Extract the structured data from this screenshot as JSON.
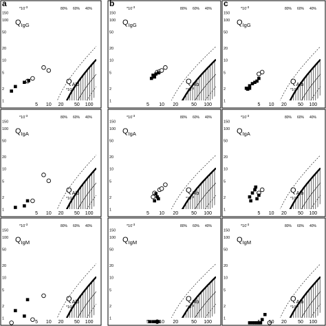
{
  "chart_data": {
    "type": "scatter",
    "scale": "log-log",
    "letters": [
      "a",
      "b",
      "c"
    ],
    "multiplier": "*10",
    "multiplier_exp": "-3",
    "x_axis": {
      "label": "Q",
      "label_sub": "Alb",
      "range": [
        1,
        150
      ],
      "ticks": [
        "5",
        "10",
        "20",
        "50",
        "100"
      ]
    },
    "y_axis": {
      "range": [
        1,
        150
      ],
      "ticks": [
        "150",
        "100",
        "50",
        "20",
        "10",
        "5",
        "2",
        "1"
      ]
    },
    "percent_labels": [
      "80%",
      "60%",
      "40%"
    ],
    "rows": [
      {
        "label": "Q",
        "label_sub": "IgG"
      },
      {
        "label": "Q",
        "label_sub": "IgA"
      },
      {
        "label": "Q",
        "label_sub": "IgM"
      }
    ],
    "panels": [
      {
        "row": 0,
        "col": 0,
        "open": [
          [
            7.5,
            6.5
          ],
          [
            10,
            5.5
          ],
          [
            3,
            3
          ],
          [
            4,
            3.5
          ]
        ],
        "filled": [
          [
            1.5,
            2.2
          ],
          [
            2.5,
            2.8
          ],
          [
            3.2,
            3.1
          ],
          [
            1.2,
            1.7
          ]
        ]
      },
      {
        "row": 0,
        "col": 1,
        "open": [
          [
            8,
            5
          ],
          [
            9,
            5.2
          ],
          [
            10,
            5.5
          ],
          [
            12,
            6.5
          ]
        ],
        "filled": [
          [
            6,
            3.5
          ],
          [
            7,
            3.8
          ],
          [
            6.5,
            4.2
          ],
          [
            7.5,
            4.5
          ],
          [
            8.5,
            4.8
          ]
        ]
      },
      {
        "row": 0,
        "col": 2,
        "open": [
          [
            5,
            4.5
          ],
          [
            6,
            5
          ]
        ],
        "filled": [
          [
            2.5,
            2
          ],
          [
            3,
            2.3
          ],
          [
            3.5,
            2.6
          ],
          [
            4,
            2.8
          ],
          [
            4.5,
            3
          ],
          [
            5,
            3.5
          ],
          [
            3,
            2
          ],
          [
            2.7,
            1.9
          ]
        ]
      },
      {
        "row": 1,
        "col": 0,
        "open": [
          [
            7.5,
            7
          ],
          [
            10,
            5
          ],
          [
            4,
            1.6
          ]
        ],
        "filled": [
          [
            1.5,
            1.1
          ],
          [
            3,
            1.6
          ],
          [
            2.5,
            1.2
          ]
        ]
      },
      {
        "row": 1,
        "col": 1,
        "open": [
          [
            6.5,
            2
          ],
          [
            7,
            2.5
          ],
          [
            9,
            3
          ],
          [
            10,
            3.2
          ],
          [
            12,
            4
          ]
        ],
        "filled": [
          [
            7,
            1.6
          ],
          [
            8,
            2
          ],
          [
            7.5,
            2.4
          ],
          [
            8.5,
            1.8
          ]
        ]
      },
      {
        "row": 1,
        "col": 2,
        "open": [
          [
            5,
            2.5
          ],
          [
            6,
            3
          ]
        ],
        "filled": [
          [
            3,
            2
          ],
          [
            3.5,
            2.5
          ],
          [
            4,
            3
          ],
          [
            4.5,
            1.8
          ],
          [
            5,
            2.2
          ],
          [
            3.2,
            1.6
          ],
          [
            4.2,
            3.5
          ]
        ]
      },
      {
        "row": 2,
        "col": 0,
        "open": [
          [
            7.5,
            3.5
          ],
          [
            4,
            0.9
          ],
          [
            1.2,
            0.7
          ]
        ],
        "filled": [
          [
            1.5,
            1.5
          ],
          [
            3,
            2.8
          ],
          [
            2.5,
            1.1
          ]
        ]
      },
      {
        "row": 2,
        "col": 1,
        "open": [
          [
            8,
            0.8
          ]
        ],
        "filled": [
          [
            5.5,
            0.8
          ],
          [
            6.5,
            0.8
          ],
          [
            7.5,
            0.8
          ],
          [
            8.5,
            0.8
          ]
        ]
      },
      {
        "row": 2,
        "col": 2,
        "open": [
          [
            9,
            0.7
          ]
        ],
        "filled": [
          [
            3,
            0.7
          ],
          [
            3.5,
            0.7
          ],
          [
            4,
            0.7
          ],
          [
            4.5,
            0.7
          ],
          [
            5,
            0.7
          ],
          [
            5.5,
            0.7
          ],
          [
            7,
            1.2
          ],
          [
            6,
            0.9
          ]
        ]
      }
    ]
  }
}
